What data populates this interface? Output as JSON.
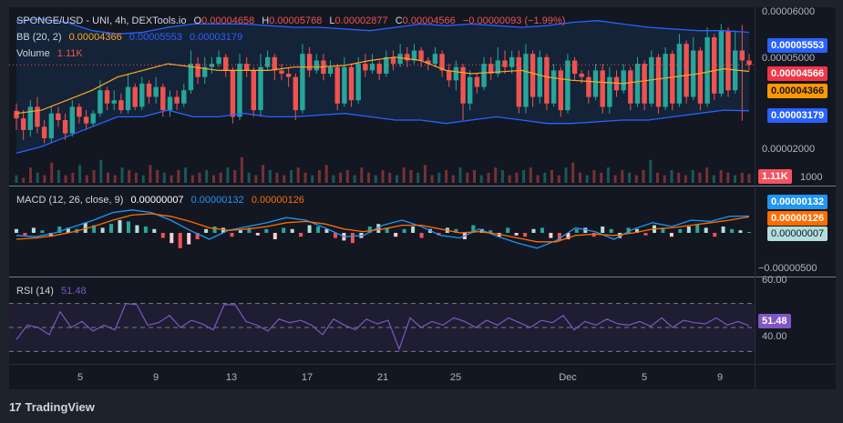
{
  "legend": {
    "symbol_line": "SPONGE/USD - UNI, 4h, DEXTools.io",
    "o_label": "O",
    "o_value": "0.00004658",
    "h_label": "H",
    "h_value": "0.00005768",
    "l_label": "L",
    "l_value": "0.00002877",
    "c_label": "C",
    "c_value": "0.00004566",
    "change": "−0.00000093 (−1.99%)",
    "bb_label": "BB (20, 2)",
    "bb_mid": "0.00004366",
    "bb_upper": "0.00005553",
    "bb_lower": "0.00003179",
    "vol_label": "Volume",
    "vol_value": "1.11K",
    "macd_label": "MACD (12, 26, close, 9)",
    "macd_hist": "0.00000007",
    "macd_line": "0.00000132",
    "macd_signal": "0.00000126",
    "rsi_label": "RSI (14)",
    "rsi_value": "51.48"
  },
  "price_axis": [
    "0.00006000",
    "0.00005000",
    "0.00002000",
    "1000"
  ],
  "price_tags": {
    "upper": "0.00005553",
    "close": "0.00004566",
    "mid": "0.00004366",
    "lower": "0.00003179",
    "volume": "1.11K"
  },
  "macd_axis": [
    "0.00000132",
    "0.00000126",
    "0.00000007",
    "−0.00000500"
  ],
  "rsi_axis": [
    "60.00",
    "40.00"
  ],
  "rsi_tag": "51.48",
  "x_axis": [
    "5",
    "9",
    "13",
    "17",
    "21",
    "25",
    "Dec",
    "5",
    "9"
  ],
  "brand": "TradingView",
  "colors": {
    "bull": "#26a69a",
    "bear": "#ef5350",
    "bb_band": "#2962ff",
    "bb_mid": "#ffa726",
    "macd": "#2196f3",
    "signal": "#ff6d00",
    "rsi": "#7e57c2",
    "bg": "#131722"
  },
  "chart_data": {
    "type": "candlestick",
    "title": "SPONGE/USD - UNI, 4h, DEXTools.io",
    "price_ylim": [
      1.5e-05,
      6.25e-05
    ],
    "candles": [
      [
        3.18,
        2.95,
        3.4,
        2.6
      ],
      [
        2.95,
        2.6,
        3.2,
        2.3
      ],
      [
        2.6,
        3.3,
        3.5,
        2.4
      ],
      [
        3.3,
        2.7,
        3.6,
        2.5
      ],
      [
        2.7,
        2.35,
        2.9,
        2.2
      ],
      [
        2.35,
        3.1,
        3.3,
        2.2
      ],
      [
        3.1,
        2.9,
        3.3,
        2.7
      ],
      [
        2.9,
        2.5,
        3.1,
        2.3
      ],
      [
        2.5,
        3.3,
        3.5,
        2.4
      ],
      [
        3.3,
        3.0,
        3.4,
        2.8
      ],
      [
        3.0,
        2.8,
        3.2,
        2.6
      ],
      [
        2.8,
        3.1,
        3.2,
        2.7
      ],
      [
        3.1,
        3.8,
        4.1,
        3.0
      ],
      [
        3.8,
        3.4,
        3.9,
        3.2
      ],
      [
        3.4,
        3.5,
        3.8,
        3.2
      ],
      [
        3.5,
        3.2,
        3.7,
        3.1
      ],
      [
        3.2,
        3.9,
        4.3,
        3.1
      ],
      [
        3.9,
        3.3,
        4.0,
        3.2
      ],
      [
        3.3,
        4.0,
        4.2,
        3.2
      ],
      [
        4.0,
        3.6,
        4.1,
        3.4
      ],
      [
        3.6,
        3.9,
        4.2,
        3.4
      ],
      [
        3.9,
        3.2,
        4.0,
        3.0
      ],
      [
        3.2,
        3.6,
        3.8,
        3.0
      ],
      [
        3.6,
        3.4,
        3.8,
        3.2
      ],
      [
        3.4,
        3.8,
        4.0,
        3.3
      ],
      [
        3.8,
        4.6,
        5.0,
        3.7
      ],
      [
        4.6,
        4.2,
        4.8,
        4.0
      ],
      [
        4.2,
        4.5,
        4.8,
        4.0
      ],
      [
        4.5,
        4.6,
        4.8,
        4.3
      ],
      [
        4.6,
        4.8,
        5.0,
        4.5
      ],
      [
        4.8,
        4.4,
        4.9,
        4.2
      ],
      [
        4.4,
        3.0,
        4.5,
        2.8
      ],
      [
        3.0,
        4.6,
        4.9,
        2.9
      ],
      [
        4.6,
        4.4,
        4.8,
        4.2
      ],
      [
        4.4,
        3.2,
        4.5,
        3.0
      ],
      [
        3.2,
        4.5,
        4.9,
        3.0
      ],
      [
        4.5,
        4.8,
        5.0,
        4.4
      ],
      [
        4.8,
        4.4,
        4.9,
        4.1
      ],
      [
        4.4,
        4.3,
        4.6,
        4.1
      ],
      [
        4.3,
        4.2,
        4.5,
        3.9
      ],
      [
        4.2,
        3.2,
        4.3,
        2.9
      ],
      [
        3.2,
        4.9,
        5.2,
        3.1
      ],
      [
        4.9,
        4.4,
        5.1,
        4.2
      ],
      [
        4.4,
        4.7,
        4.9,
        4.3
      ],
      [
        4.7,
        4.3,
        4.9,
        4.1
      ],
      [
        4.3,
        4.5,
        4.7,
        4.2
      ],
      [
        4.5,
        3.4,
        4.6,
        3.2
      ],
      [
        3.4,
        4.5,
        4.8,
        3.3
      ],
      [
        4.5,
        3.5,
        4.6,
        3.3
      ],
      [
        3.5,
        4.6,
        4.8,
        3.4
      ],
      [
        4.6,
        4.4,
        4.9,
        4.2
      ],
      [
        4.4,
        4.6,
        4.9,
        4.3
      ],
      [
        4.6,
        4.3,
        4.7,
        4.1
      ],
      [
        4.3,
        4.8,
        5.0,
        4.2
      ],
      [
        4.8,
        4.6,
        5.0,
        4.4
      ],
      [
        4.6,
        4.9,
        5.2,
        4.5
      ],
      [
        4.9,
        4.7,
        5.1,
        4.5
      ],
      [
        4.7,
        5.0,
        5.2,
        4.6
      ],
      [
        5.0,
        4.7,
        5.1,
        4.5
      ],
      [
        4.7,
        4.6,
        4.8,
        4.4
      ],
      [
        4.6,
        4.9,
        5.1,
        4.5
      ],
      [
        4.9,
        4.4,
        5.0,
        4.2
      ],
      [
        4.4,
        4.1,
        4.6,
        3.9
      ],
      [
        4.1,
        4.5,
        4.7,
        3.8
      ],
      [
        4.5,
        3.4,
        4.6,
        2.9
      ],
      [
        3.4,
        4.2,
        4.4,
        3.2
      ],
      [
        4.2,
        3.9,
        4.3,
        3.7
      ],
      [
        3.9,
        4.6,
        4.8,
        3.8
      ],
      [
        4.6,
        4.3,
        4.8,
        4.1
      ],
      [
        4.3,
        4.7,
        5.1,
        4.2
      ],
      [
        4.7,
        4.5,
        5.0,
        4.3
      ],
      [
        4.5,
        4.8,
        5.0,
        4.3
      ],
      [
        4.8,
        3.3,
        5.0,
        3.1
      ],
      [
        3.3,
        4.9,
        5.2,
        3.1
      ],
      [
        4.9,
        3.6,
        5.0,
        3.3
      ],
      [
        3.6,
        4.8,
        5.0,
        3.4
      ],
      [
        4.8,
        3.4,
        4.9,
        3.2
      ],
      [
        3.4,
        4.4,
        4.6,
        3.3
      ],
      [
        4.4,
        3.2,
        4.5,
        3.0
      ],
      [
        3.2,
        4.7,
        4.9,
        3.1
      ],
      [
        4.7,
        4.3,
        4.8,
        4.1
      ],
      [
        4.3,
        4.2,
        4.4,
        4.0
      ],
      [
        4.2,
        3.6,
        4.4,
        3.4
      ],
      [
        3.6,
        4.4,
        4.6,
        3.5
      ],
      [
        4.4,
        3.3,
        4.6,
        3.1
      ],
      [
        3.3,
        4.2,
        4.5,
        3.1
      ],
      [
        4.2,
        3.8,
        4.4,
        3.6
      ],
      [
        3.8,
        4.4,
        4.6,
        3.7
      ],
      [
        4.4,
        3.4,
        4.5,
        3.2
      ],
      [
        3.4,
        4.6,
        4.8,
        3.3
      ],
      [
        4.6,
        3.4,
        4.7,
        3.2
      ],
      [
        3.4,
        4.8,
        5.0,
        3.3
      ],
      [
        4.8,
        3.3,
        4.9,
        3.1
      ],
      [
        3.3,
        4.9,
        5.1,
        3.2
      ],
      [
        4.9,
        3.4,
        5.0,
        3.2
      ],
      [
        3.4,
        5.2,
        5.5,
        3.3
      ],
      [
        5.2,
        3.6,
        5.3,
        3.4
      ],
      [
        3.6,
        5.0,
        5.4,
        3.5
      ],
      [
        5.0,
        3.4,
        5.1,
        3.2
      ],
      [
        3.4,
        5.4,
        5.7,
        3.3
      ],
      [
        5.4,
        3.7,
        5.5,
        3.5
      ],
      [
        3.7,
        5.6,
        5.8,
        3.6
      ],
      [
        5.6,
        3.8,
        5.7,
        3.6
      ],
      [
        3.8,
        5.0,
        5.6,
        3.7
      ],
      [
        5.0,
        4.7,
        5.77,
        2.88
      ],
      [
        4.7,
        4.566,
        4.9,
        4.4
      ]
    ],
    "bb_upper": [
      5.9,
      5.95,
      5.85,
      5.6,
      5.5,
      5.55,
      5.7,
      5.8,
      5.8,
      5.8,
      5.75,
      5.7,
      5.7,
      5.65,
      5.6,
      5.7,
      5.8,
      5.75,
      5.8,
      5.75,
      5.7,
      5.75,
      5.85,
      5.9,
      5.8,
      5.7,
      5.65,
      5.6,
      5.6,
      5.55
    ],
    "bb_mid": [
      3.1,
      3.2,
      3.5,
      3.8,
      4.2,
      4.4,
      4.6,
      4.5,
      4.4,
      4.4,
      4.4,
      4.5,
      4.5,
      4.55,
      4.7,
      4.8,
      4.7,
      4.4,
      4.3,
      4.35,
      4.4,
      4.2,
      4.1,
      4.05,
      4.0,
      4.1,
      4.2,
      4.3,
      4.45,
      4.37
    ],
    "bb_lower": [
      1.9,
      2.1,
      2.4,
      2.7,
      3.0,
      3.0,
      3.2,
      3.0,
      3.0,
      3.1,
      3.0,
      3.0,
      3.05,
      3.1,
      3.0,
      2.9,
      2.9,
      2.8,
      2.9,
      3.0,
      2.9,
      2.8,
      2.8,
      2.85,
      2.9,
      2.9,
      3.0,
      3.1,
      3.2,
      3.18
    ],
    "volume_bars": [
      0.3,
      0.2,
      0.6,
      0.4,
      0.3,
      0.8,
      0.5,
      0.3,
      0.4,
      0.7,
      0.3,
      0.5,
      0.9,
      0.4,
      0.3,
      0.6,
      0.5,
      0.4,
      0.3,
      0.7,
      0.5,
      0.4,
      0.3,
      0.5,
      0.6,
      0.3,
      0.4,
      0.5,
      0.3,
      0.4,
      0.6,
      0.5,
      1.0,
      0.4,
      0.3,
      0.7,
      0.5,
      0.4,
      0.3,
      0.5,
      0.6,
      0.4,
      0.3,
      0.5,
      0.7,
      0.3,
      0.4,
      0.5,
      0.3,
      0.6,
      0.4,
      0.3,
      0.5,
      0.4,
      0.3,
      0.6,
      0.5,
      0.4,
      0.7,
      0.3,
      0.4,
      0.5,
      0.3,
      0.6,
      0.4,
      0.5,
      0.3,
      0.4,
      0.6,
      0.5,
      0.3,
      0.4,
      0.5,
      0.6,
      0.3,
      0.4,
      0.5,
      0.3,
      0.6,
      0.8,
      0.4,
      0.3,
      0.5,
      0.4,
      0.6,
      0.3,
      0.5,
      0.4,
      0.3,
      0.5,
      0.9,
      0.4,
      0.3,
      0.5,
      0.4,
      0.3,
      0.5,
      0.4,
      0.6,
      0.3,
      0.5,
      0.4,
      0.3,
      0.4,
      0.35
    ],
    "macd_hist": [
      0.3,
      -0.2,
      0.4,
      0.2,
      -0.3,
      0.5,
      0.4,
      0.3,
      0.8,
      0.6,
      0.4,
      0.7,
      1.0,
      0.9,
      0.6,
      0.5,
      0.3,
      -0.4,
      -0.8,
      -1.2,
      -0.9,
      -0.5,
      0.3,
      0.5,
      0.4,
      -0.3,
      0.2,
      0.4,
      -0.2,
      0.3,
      -0.5,
      0.4,
      0.3,
      -0.3,
      0.6,
      0.5,
      0.3,
      -0.4,
      -0.6,
      -0.8,
      -0.4,
      0.5,
      0.7,
      0.4,
      -0.3,
      0.3,
      0.5,
      -0.4,
      0.3,
      -0.2,
      0.4,
      0.3,
      -0.5,
      0.6,
      0.3,
      0.2,
      -0.3,
      0.4,
      -0.2,
      -0.3,
      0.3,
      0.4,
      -0.4,
      -0.6,
      -0.5,
      0.3,
      0.4,
      -0.3,
      0.5,
      0.3,
      -0.4,
      0.4,
      0.3,
      -0.2,
      0.6,
      0.4,
      -0.3,
      0.3,
      0.5,
      0.7,
      0.4,
      -0.3,
      0.5,
      0.3,
      0.2,
      0.07
    ],
    "macd_line": [
      -0.2,
      -0.3,
      0.0,
      0.5,
      1.0,
      1.6,
      1.8,
      1.6,
      1.0,
      0.2,
      -0.5,
      0.2,
      0.5,
      0.8,
      1.2,
      1.0,
      0.4,
      -0.3,
      -0.2,
      0.6,
      1.0,
      0.5,
      -0.2,
      -0.4,
      0.3,
      -0.3,
      -0.8,
      -1.2,
      -0.6,
      0.4,
      0.1,
      -0.5,
      0.3,
      0.8,
      0.5,
      1.0,
      0.9,
      1.3,
      1.32
    ],
    "signal_line": [
      -0.5,
      -0.4,
      -0.2,
      0.1,
      0.5,
      1.0,
      1.4,
      1.5,
      1.3,
      0.9,
      0.4,
      0.2,
      0.3,
      0.5,
      0.8,
      0.9,
      0.7,
      0.3,
      0.1,
      0.3,
      0.6,
      0.6,
      0.3,
      0.0,
      0.1,
      -0.1,
      -0.4,
      -0.7,
      -0.7,
      -0.2,
      -0.1,
      -0.2,
      0.0,
      0.3,
      0.4,
      0.6,
      0.8,
      1.0,
      1.26
    ],
    "rsi": [
      40,
      52,
      50,
      44,
      63,
      50,
      55,
      47,
      52,
      48,
      70,
      69,
      52,
      54,
      60,
      50,
      56,
      53,
      48,
      69,
      69,
      55,
      52,
      47,
      57,
      54,
      56,
      52,
      44,
      57,
      52,
      48,
      57,
      53,
      56,
      32,
      58,
      50,
      55,
      52,
      58,
      55,
      50,
      56,
      52,
      58,
      54,
      50,
      56,
      54,
      60,
      48,
      55,
      52,
      57,
      53,
      52,
      55,
      51,
      58,
      50,
      56,
      54,
      53,
      58,
      52,
      55,
      51.48
    ],
    "rsi_levels": [
      70,
      30
    ],
    "x_ticks": [
      "5",
      "9",
      "13",
      "17",
      "21",
      "25",
      "Dec",
      "5",
      "9"
    ]
  }
}
